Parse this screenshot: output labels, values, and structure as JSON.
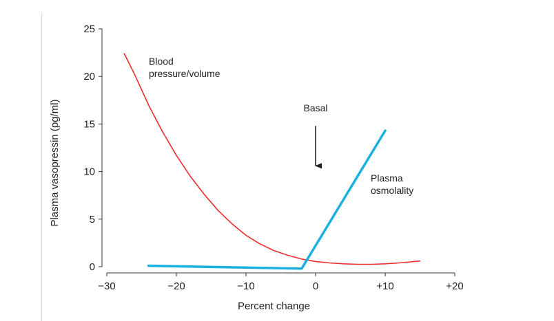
{
  "chart_data": {
    "type": "line",
    "title": "",
    "xlabel": "Percent change",
    "ylabel": "Plasma vasopressin (pg/ml)",
    "xlim": [
      -30,
      20
    ],
    "ylim": [
      0,
      25
    ],
    "x_ticks": [
      -30,
      -20,
      -10,
      0,
      10,
      20
    ],
    "x_tick_labels": [
      "−30",
      "−20",
      "−10",
      "0",
      "+10",
      "+20"
    ],
    "y_ticks": [
      0,
      5,
      10,
      15,
      20,
      25
    ],
    "y_tick_labels": [
      "0",
      "5",
      "10",
      "15",
      "20",
      "25"
    ],
    "grid": false,
    "series": [
      {
        "name": "Blood pressure/volume",
        "label_lines": [
          "Blood",
          "pressure/volume"
        ],
        "color": "#ee2b2b",
        "x": [
          -27.5,
          -26,
          -24,
          -22,
          -20,
          -18,
          -16,
          -14,
          -12,
          -10,
          -8,
          -6,
          -4,
          -2,
          0,
          2,
          4,
          6,
          8,
          10,
          12,
          15
        ],
        "y": [
          22.4,
          20.2,
          17.0,
          14.2,
          11.7,
          9.5,
          7.6,
          5.9,
          4.5,
          3.3,
          2.4,
          1.7,
          1.2,
          0.8,
          0.55,
          0.4,
          0.3,
          0.25,
          0.25,
          0.3,
          0.4,
          0.6
        ]
      },
      {
        "name": "Plasma osmolality",
        "label_lines": [
          "Plasma",
          "osmolality"
        ],
        "color": "#1ab0e0",
        "x": [
          -24,
          -2,
          10
        ],
        "y": [
          0.1,
          -0.2,
          14.3
        ]
      }
    ],
    "annotations": [
      {
        "text": "Basal",
        "x": 0,
        "y_from": 14.8,
        "y_to": 10.6
      }
    ]
  }
}
